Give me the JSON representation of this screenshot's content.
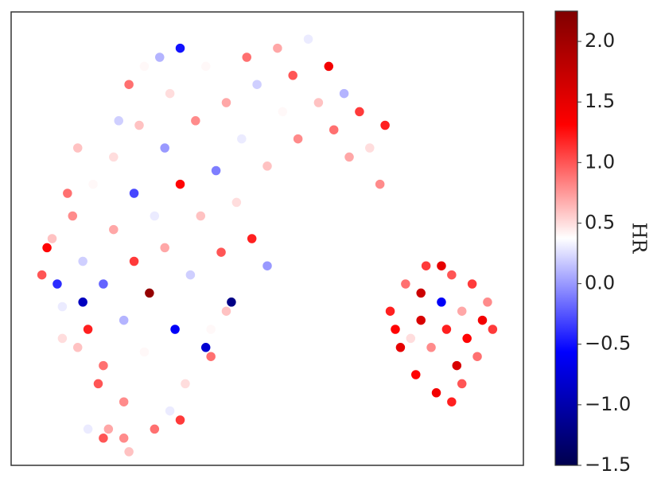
{
  "chart_data": {
    "type": "scatter",
    "x": [
      6,
      8,
      10,
      12,
      14,
      15,
      16,
      18,
      18,
      20,
      20,
      22,
      22,
      24,
      24,
      25,
      26,
      27,
      28,
      28,
      30,
      30,
      31,
      32,
      33,
      34,
      35,
      36,
      37,
      38,
      39,
      40,
      41,
      42,
      43,
      44,
      45,
      46,
      47,
      48,
      50,
      50,
      52,
      53,
      55,
      56,
      58,
      60,
      62,
      63,
      65,
      66,
      68,
      70,
      72,
      73,
      7,
      9,
      13,
      17,
      19,
      21,
      23,
      26,
      29,
      33,
      13,
      11,
      33,
      31,
      22,
      18,
      23,
      38,
      42,
      39,
      14,
      10,
      15,
      74,
      76,
      77,
      79,
      80,
      81,
      82,
      83,
      84,
      85,
      86,
      87,
      88,
      89,
      90,
      91,
      92,
      93,
      80,
      86,
      78,
      84,
      88,
      94,
      75
    ],
    "y": [
      42,
      50,
      35,
      55,
      45,
      30,
      62,
      40,
      22,
      52,
      68,
      32,
      14,
      45,
      60,
      75,
      25,
      38,
      55,
      8,
      70,
      48,
      82,
      30,
      62,
      18,
      42,
      76,
      55,
      88,
      24,
      65,
      47,
      80,
      36,
      58,
      72,
      90,
      50,
      84,
      66,
      44,
      92,
      78,
      86,
      72,
      94,
      80,
      88,
      74,
      82,
      68,
      78,
      70,
      62,
      75,
      48,
      40,
      26,
      18,
      8,
      76,
      84,
      88,
      90,
      92,
      70,
      60,
      10,
      12,
      6,
      6,
      3,
      26,
      34,
      30,
      36,
      28,
      8,
      34,
      26,
      40,
      20,
      32,
      44,
      26,
      16,
      36,
      30,
      42,
      22,
      34,
      28,
      40,
      24,
      32,
      36,
      38,
      14,
      28,
      44,
      18,
      30,
      30
    ],
    "hr": [
      1.0,
      0.6,
      0.3,
      0.8,
      0.2,
      1.2,
      0.4,
      -0.2,
      0.9,
      0.7,
      0.5,
      0.1,
      0.8,
      1.1,
      -0.3,
      0.6,
      0.4,
      2.1,
      0.3,
      0.9,
      0.0,
      0.7,
      0.5,
      -0.6,
      1.3,
      0.5,
      0.2,
      0.8,
      0.6,
      0.4,
      0.9,
      -0.1,
      1.0,
      0.7,
      -1.2,
      0.5,
      0.3,
      0.9,
      1.2,
      0.2,
      0.6,
      0.0,
      0.7,
      0.4,
      1.0,
      0.8,
      0.3,
      0.6,
      1.4,
      0.9,
      0.1,
      0.7,
      1.1,
      0.5,
      0.8,
      1.2,
      1.3,
      -0.4,
      0.6,
      1.0,
      0.7,
      0.2,
      0.9,
      0.4,
      0.1,
      -0.5,
      0.6,
      0.9,
      1.1,
      0.3,
      0.8,
      1.0,
      0.6,
      -0.8,
      0.6,
      0.4,
      -0.9,
      0.5,
      0.3,
      1.2,
      1.5,
      0.9,
      1.3,
      1.6,
      1.1,
      0.8,
      1.4,
      -0.6,
      1.2,
      1.0,
      1.6,
      0.7,
      1.3,
      1.1,
      0.9,
      1.4,
      0.8,
      1.7,
      1.2,
      0.5,
      1.5,
      1.0,
      1.1,
      1.3
    ],
    "xlim": [
      0,
      100
    ],
    "ylim": [
      0,
      100
    ],
    "colormap": "seismic",
    "clim": [
      -1.5,
      2.25
    ],
    "cticks": [
      {
        "value": -1.5,
        "label": "−1.5"
      },
      {
        "value": -1.0,
        "label": "−1.0"
      },
      {
        "value": -0.5,
        "label": "−0.5"
      },
      {
        "value": 0,
        "label": "0.0"
      },
      0.5,
      {
        "value": 1.0,
        "label": "1.0"
      },
      1.5,
      {
        "value": 2.0,
        "label": "2.0"
      }
    ],
    "colorbar_label": "HR"
  }
}
